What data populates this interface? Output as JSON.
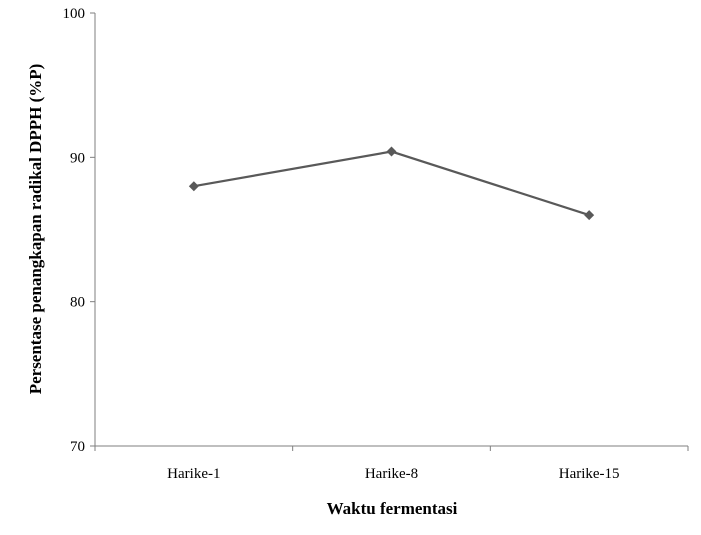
{
  "chart_data": {
    "type": "line",
    "title": "",
    "categories": [
      "Harike-1",
      "Harike-8",
      "Harike-15"
    ],
    "series": [
      {
        "name": "Persentase penangkapan radikal DPPH",
        "values": [
          88.0,
          90.4,
          86.0
        ]
      }
    ],
    "xlabel": "Waktu fermentasi",
    "ylabel": "Persentase penangkapan radikal DPPH (%P)",
    "ylim": [
      70,
      100
    ],
    "yticks": [
      70,
      80,
      90,
      100
    ],
    "grid": false,
    "legend": "none",
    "line_color": "#595959",
    "marker": "diamond"
  }
}
